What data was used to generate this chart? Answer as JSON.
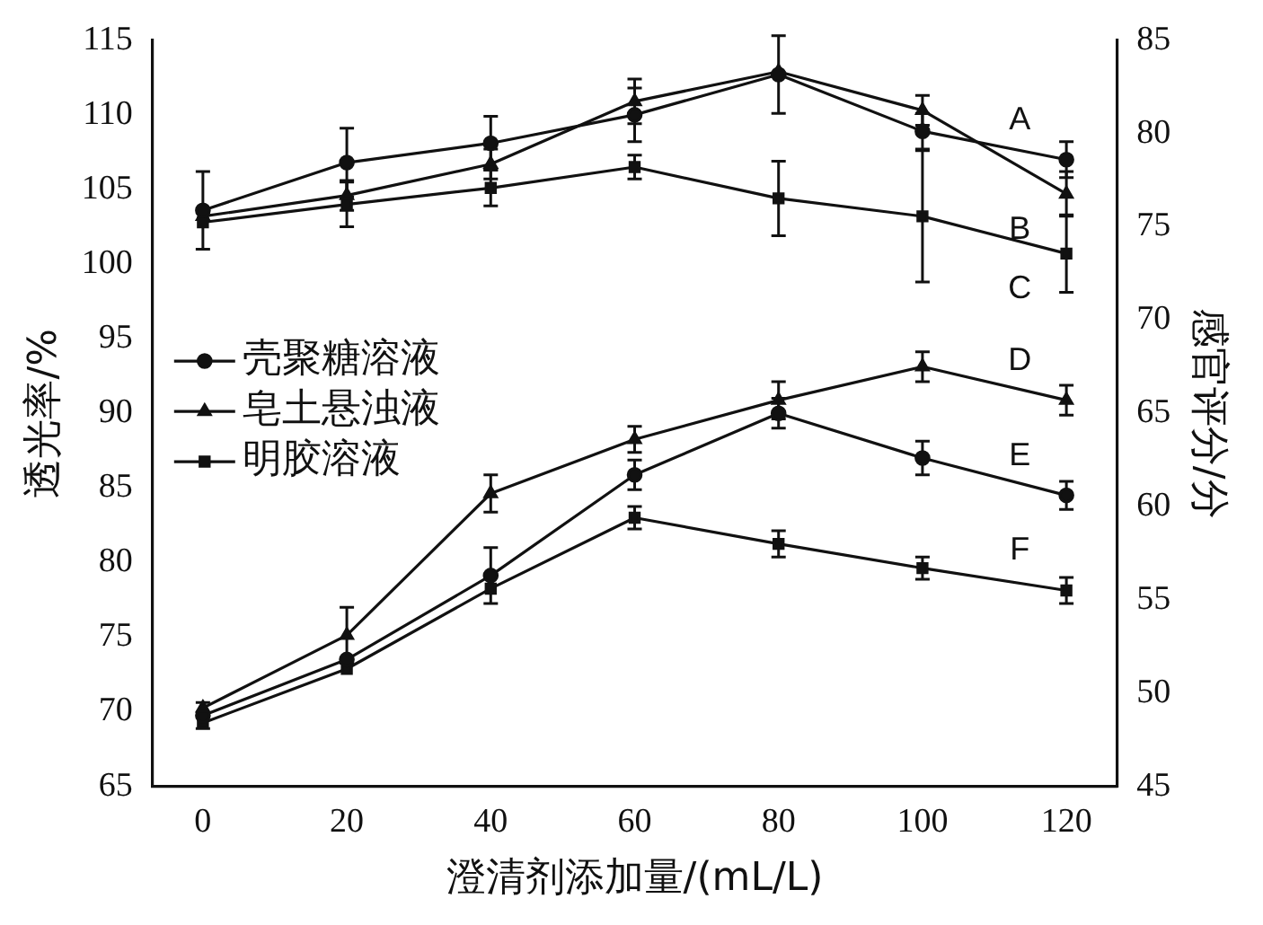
{
  "chart_data": {
    "type": "line",
    "xlabel": "澄清剂添加量/(mL/L)",
    "ylabel": "透光率/%",
    "y2label": "感官评分/分",
    "x": [
      0,
      20,
      40,
      60,
      80,
      100,
      120
    ],
    "series": [
      {
        "name": "壳聚糖溶液",
        "color": "#111111",
        "marker": "circle",
        "values": [
          103.6,
          106.8,
          108.1,
          110,
          112.7,
          108.9,
          107
        ],
        "errors": [
          2.6,
          2.3,
          1.8,
          1.8,
          2.6,
          1.2,
          1.2
        ]
      },
      {
        "name": "皂土悬浊液",
        "color": "#111111",
        "marker": "triangle",
        "values": [
          103.2,
          104.6,
          106.7,
          110.9,
          112.9,
          110.3,
          104.7
        ],
        "errors": [
          null,
          1,
          1,
          1.5,
          null,
          1,
          1.5
        ]
      },
      {
        "name": "明胶溶液",
        "color": "#111111",
        "marker": "square",
        "values": [
          102.8,
          104,
          105.1,
          106.5,
          104.4,
          103.2,
          100.7
        ],
        "errors": [
          null,
          1.5,
          1.2,
          0.8,
          2.5,
          4.4,
          2.6
        ]
      },
      {
        "color": "#111111",
        "marker": "triangle",
        "axis": "y2",
        "values": [
          49.2,
          53.1,
          60.7,
          63.6,
          65.7,
          67.5,
          65.7
        ],
        "errors": [
          null,
          1.5,
          1,
          0.7,
          1,
          0.8,
          0.8
        ]
      },
      {
        "color": "#111111",
        "marker": "circle",
        "axis": "y2",
        "values": [
          48.8,
          51.8,
          56.3,
          61.7,
          65,
          62.6,
          60.6
        ],
        "errors": [
          0.7,
          null,
          1.5,
          0.8,
          0.8,
          0.9,
          0.75
        ]
      },
      {
        "color": "#111111",
        "marker": "square",
        "axis": "y2",
        "values": [
          48.4,
          51.3,
          55.6,
          59.4,
          58,
          56.7,
          55.5
        ],
        "errors": [
          null,
          null,
          null,
          0.6,
          0.7,
          0.6,
          0.7
        ]
      }
    ],
    "xlim": [
      -7,
      127
    ],
    "xticks": [
      0,
      20,
      40,
      60,
      80,
      100,
      120
    ],
    "ylim": [
      65,
      115
    ],
    "yticks": [
      65,
      70,
      75,
      80,
      85,
      90,
      95,
      100,
      105,
      110,
      115
    ],
    "y2lim": [
      45,
      85
    ],
    "y2ticks": [
      45,
      50,
      55,
      60,
      65,
      70,
      75,
      80,
      85
    ],
    "legend": "left",
    "grid": false,
    "line_style": "solid",
    "annotations": [
      "A",
      "B",
      "C",
      "D",
      "E",
      "F"
    ]
  }
}
